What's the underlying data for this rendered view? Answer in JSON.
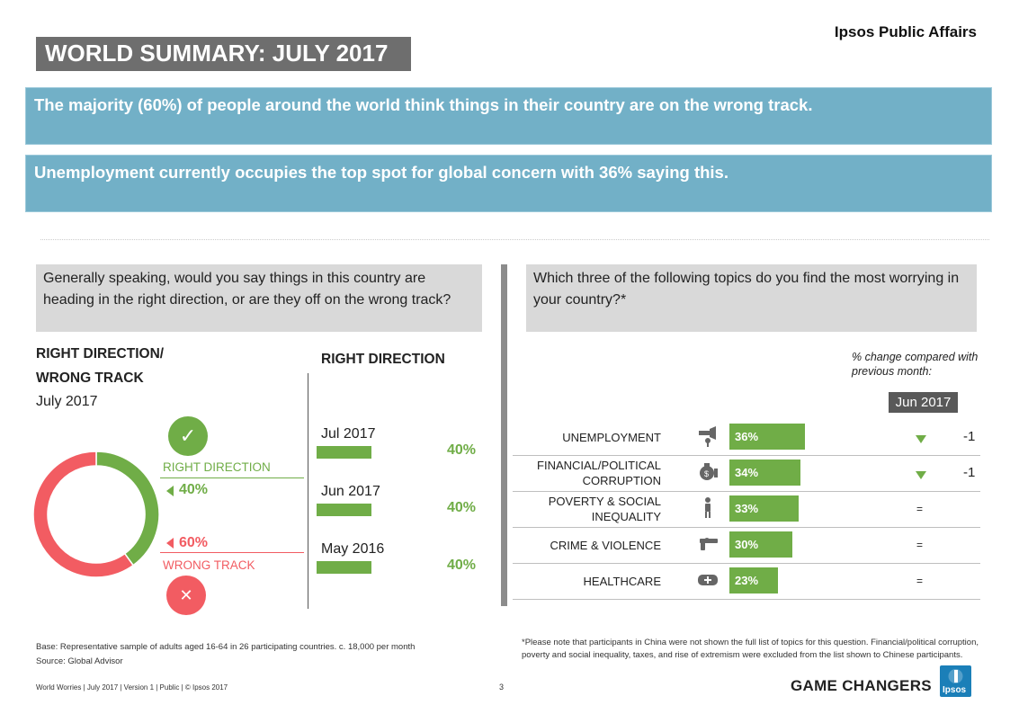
{
  "header": {
    "brand": "Ipsos Public Affairs",
    "title": "WORLD SUMMARY: JULY 2017"
  },
  "banners": [
    "The majority (60%) of people around the world think things in their country are on the wrong track.",
    "Unemployment currently occupies the top spot for global concern with 36% saying this."
  ],
  "left_panel": {
    "question": "Generally speaking, would you say things in this country are heading in the right direction, or are they off on the wrong track?",
    "heading_line1": "RIGHT DIRECTION/",
    "heading_line2": "WRONG TRACK",
    "period": "July 2017",
    "right_label": "RIGHT DIRECTION",
    "right_value": "40%",
    "wrong_label": "WRONG TRACK",
    "wrong_value": "60%",
    "check_glyph": "✓",
    "cross_glyph": "✕",
    "trend_title": "RIGHT DIRECTION"
  },
  "right_panel": {
    "question": "Which three of the following topics do you find the most worrying in your country?*",
    "change_note_line1": "% change compared with",
    "change_note_line2": "previous month:",
    "badge": "Jun 2017"
  },
  "chart_data": [
    {
      "type": "pie",
      "title": "",
      "slices": [
        {
          "name": "RIGHT DIRECTION",
          "value": 40,
          "color": "#70ad47"
        },
        {
          "name": "WRONG TRACK",
          "value": 60,
          "color": "#f25c62"
        }
      ],
      "donut": true
    },
    {
      "type": "bar",
      "title": "RIGHT DIRECTION",
      "orientation": "horizontal",
      "categories": [
        "Jul 2017",
        "Jun 2017",
        "May 2016"
      ],
      "values": [
        40,
        40,
        40
      ],
      "labels": [
        "40%",
        "40%",
        "40%"
      ],
      "color": "#70ad47"
    },
    {
      "type": "bar",
      "title": "",
      "orientation": "horizontal",
      "categories": [
        "UNEMPLOYMENT",
        "FINANCIAL/POLITICAL CORRUPTION",
        "POVERTY & SOCIAL INEQUALITY",
        "CRIME & VIOLENCE",
        "HEALTHCARE"
      ],
      "category_lines": [
        [
          "UNEMPLOYMENT"
        ],
        [
          "FINANCIAL/POLITICAL",
          "CORRUPTION"
        ],
        [
          "POVERTY & SOCIAL",
          "INEQUALITY"
        ],
        [
          "CRIME & VIOLENCE"
        ],
        [
          "HEALTHCARE"
        ]
      ],
      "icons": [
        "speaker-icon",
        "money-bag-icon",
        "person-icon",
        "gun-icon",
        "medical-kit-icon"
      ],
      "values": [
        36,
        34,
        33,
        30,
        23
      ],
      "labels": [
        "36%",
        "34%",
        "33%",
        "30%",
        "23%"
      ],
      "change_direction": [
        "down",
        "down",
        "same",
        "same",
        "same"
      ],
      "change_symbol": [
        "",
        "",
        "=",
        "=",
        "="
      ],
      "change_values": [
        "-1",
        "-1",
        "",
        "",
        ""
      ],
      "color": "#70ad47"
    }
  ],
  "footer": {
    "base_note": "Base: Representative sample of adults aged 16-64 in 26 participating countries. c. 18,000 per month",
    "source": "Source: Global Advisor",
    "china_note": "*Please note that participants in China were not shown the full list of topics for this question. Financial/political corruption, poverty and social inequality, taxes, and rise of extremism were excluded from the list shown to Chinese participants.",
    "meta": "World Worries  |  July 2017  |  Version 1  |  Public  |  © Ipsos 2017",
    "page": "3",
    "game_changers": "GAME CHANGERS",
    "logo_text": "Ipsos"
  }
}
